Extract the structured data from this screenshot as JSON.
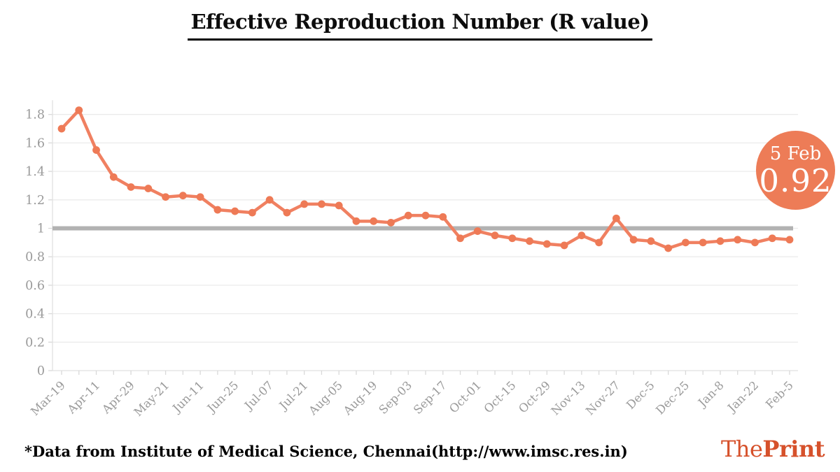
{
  "title": "Effective Reproduction Number (R value)",
  "badge": {
    "date": "5 Feb",
    "value": "0.92"
  },
  "footer": {
    "source": "*Data from Institute of Medical Science, Chennai(http://www.imsc.res.in)",
    "logo_the": "The",
    "logo_print": "Print"
  },
  "colors": {
    "line": "#F08061",
    "point": "#EE7A56",
    "badge_bg": "#ED7C57",
    "reference_line": "#B2B2B2",
    "grid": "#EBEBEB",
    "axis_line": "#E0E0E0",
    "tick": "#D9D9D9",
    "axis_text": "#9A9A9A",
    "logo": "#D6512B",
    "title_text": "#0D0D0D"
  },
  "chart_data": {
    "type": "line",
    "title": "Effective Reproduction Number (R value)",
    "xlabel": "",
    "ylabel": "",
    "grid": true,
    "legend": false,
    "ylim": [
      0,
      1.9
    ],
    "yticks": [
      0,
      0.2,
      0.4,
      0.6,
      0.8,
      1,
      1.2,
      1.4,
      1.6,
      1.8
    ],
    "ytick_labels": [
      "0",
      "0.2",
      "0.4",
      "0.6",
      "0.8",
      "1",
      "1.2",
      "1.4",
      "1.6",
      "1.8"
    ],
    "reference_line": 1,
    "x_labels": [
      "Mar-19",
      "Apr-11",
      "Apr-29",
      "May-21",
      "Jun-11",
      "Jun-25",
      "Jul-07",
      "Jul-21",
      "Aug-05",
      "Aug-19",
      "Sep-03",
      "Sep-17",
      "Oct-01",
      "Oct-15",
      "Oct-29",
      "Nov-13",
      "Nov-27",
      "Dec-5",
      "Dec-25",
      "Jan-8",
      "Jan-22",
      "Feb-5"
    ],
    "label_every": 2,
    "series": [
      {
        "name": "R value",
        "values": [
          1.7,
          1.83,
          1.55,
          1.36,
          1.29,
          1.28,
          1.22,
          1.23,
          1.22,
          1.13,
          1.12,
          1.11,
          1.2,
          1.11,
          1.17,
          1.17,
          1.16,
          1.05,
          1.05,
          1.04,
          1.09,
          1.09,
          1.08,
          0.93,
          0.98,
          0.95,
          0.93,
          0.91,
          0.89,
          0.88,
          0.95,
          0.9,
          1.07,
          0.92,
          0.91,
          0.86,
          0.9,
          0.9,
          0.91,
          0.92,
          0.9,
          0.93,
          0.92
        ]
      }
    ],
    "annotation": {
      "label": "5 Feb",
      "value": 0.92
    }
  }
}
